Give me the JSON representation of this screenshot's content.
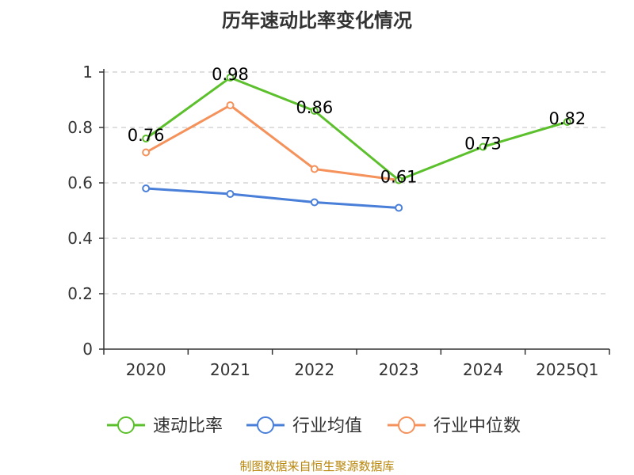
{
  "chart_data": {
    "type": "line",
    "title": "历年速动比率变化情况",
    "categories": [
      "2020",
      "2021",
      "2022",
      "2023",
      "2024",
      "2025Q1"
    ],
    "ylim": [
      0,
      1
    ],
    "yticks": [
      "0",
      "0.2",
      "0.4",
      "0.6",
      "0.8",
      "1"
    ],
    "grid": true,
    "legend_position": "bottom",
    "series": [
      {
        "name": "速动比率",
        "color": "#5cc02c",
        "values": [
          0.76,
          0.98,
          0.86,
          0.61,
          0.73,
          0.82
        ],
        "labels": [
          "0.76",
          "0.98",
          "0.86",
          "0.61",
          "0.73",
          "0.82"
        ]
      },
      {
        "name": "行业均值",
        "color": "#4a7fd9",
        "values": [
          0.58,
          0.56,
          0.53,
          0.51,
          null,
          null
        ]
      },
      {
        "name": "行业中位数",
        "color": "#f5915a",
        "values": [
          0.71,
          0.88,
          0.65,
          0.61,
          null,
          null
        ]
      }
    ]
  },
  "source": "制图数据来自恒生聚源数据库"
}
